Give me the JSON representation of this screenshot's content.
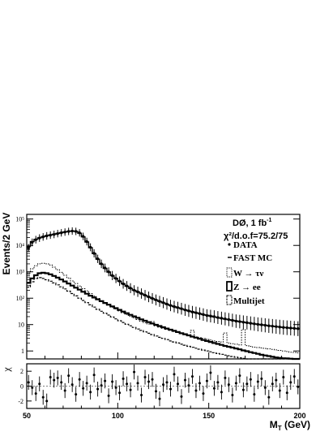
{
  "chart_data": [
    {
      "type": "line",
      "panel": "main",
      "ylabel": "Events/2 GeV",
      "yscale": "log",
      "xlim": [
        50,
        200
      ],
      "ylim": [
        0.5,
        150000
      ],
      "ytick_labels": [
        "1",
        "10",
        "10²",
        "10³",
        "10⁴",
        "10⁵"
      ],
      "ytick_values": [
        1,
        10,
        100,
        1000,
        10000,
        100000
      ],
      "legend_placement": "top-right",
      "annotations": {
        "experiment": "DØ, 1 fb",
        "experiment_sup": "-1",
        "chi2": "χ²/d.o.f=75.2/75"
      },
      "legend": [
        "DATA",
        "FAST MC",
        "W → τν",
        "Z → ee",
        "Multijet"
      ],
      "x": [
        50,
        52,
        54,
        56,
        58,
        60,
        62,
        64,
        66,
        68,
        70,
        72,
        74,
        76,
        78,
        80,
        82,
        84,
        86,
        88,
        90,
        92,
        94,
        96,
        98,
        100,
        102,
        104,
        106,
        108,
        110,
        112,
        114,
        116,
        118,
        120,
        122,
        124,
        126,
        128,
        130,
        132,
        134,
        136,
        138,
        140,
        142,
        144,
        146,
        148,
        150,
        152,
        154,
        156,
        158,
        160,
        162,
        164,
        166,
        168,
        170,
        172,
        174,
        176,
        178,
        180,
        182,
        184,
        186,
        188,
        190,
        192,
        194,
        196,
        198
      ],
      "series": [
        {
          "name": "DATA",
          "style": "points",
          "values": [
            8000,
            13000,
            16500,
            19000,
            21000,
            23000,
            24500,
            26000,
            28000,
            30000,
            32000,
            34000,
            35000,
            34000,
            30000,
            22000,
            14000,
            8500,
            5000,
            3100,
            2000,
            1400,
            1000,
            720,
            560,
            440,
            350,
            290,
            240,
            200,
            175,
            150,
            130,
            112,
            98,
            86,
            76,
            68,
            60,
            53,
            48,
            44,
            40,
            36,
            33,
            30,
            28,
            26,
            24,
            22,
            21,
            20,
            18.5,
            17.5,
            16.5,
            15.5,
            14.5,
            13.5,
            13,
            12.3,
            11.8,
            11.2,
            10.7,
            10.2,
            9.8,
            9.4,
            9,
            8.7,
            8.4,
            8.1,
            7.8,
            7.6,
            7.4,
            7.2,
            7
          ]
        },
        {
          "name": "FAST MC",
          "style": "step",
          "values": [
            9000,
            14000,
            17000,
            19500,
            21500,
            23500,
            25000,
            26500,
            28500,
            30500,
            32500,
            34000,
            35000,
            34000,
            29000,
            21000,
            13500,
            8200,
            4900,
            3000,
            1950,
            1350,
            980,
            720,
            560,
            440,
            350,
            285,
            235,
            198,
            172,
            148,
            128,
            111,
            97,
            85,
            75,
            67,
            59,
            53,
            48,
            43.5,
            39.5,
            36,
            33,
            30.5,
            28,
            26,
            24,
            22.5,
            21,
            19.5,
            18.3,
            17.2,
            16.2,
            15.3,
            14.5,
            13.7,
            13,
            12.4,
            11.8,
            11.2,
            10.7,
            10.2,
            9.8,
            9.4,
            9,
            8.7,
            8.4,
            8.1,
            7.8,
            7.6,
            7.4,
            7.2,
            7
          ]
        },
        {
          "name": "W → τν",
          "style": "step-dotted",
          "values": [
            900,
            1300,
            1700,
            2000,
            2100,
            2000,
            1800,
            1500,
            1200,
            950,
            740,
            580,
            450,
            360,
            290,
            230,
            190,
            150,
            120,
            98,
            80,
            66,
            55,
            46,
            39,
            33,
            28,
            24,
            20.5,
            18,
            15.5,
            13.5,
            11.8,
            10.5,
            13,
            9,
            8,
            7.3,
            6.6,
            6,
            5.5,
            5,
            4.6,
            4.2,
            3.9,
            6,
            3.4,
            3.2,
            3,
            2.8,
            2.6,
            2.4,
            2.3,
            2.2,
            4.8,
            2,
            1.9,
            1.8,
            1.7,
            6.5,
            1.6,
            1.5,
            1.4,
            1.35,
            1.3,
            1.25,
            1.2,
            1.15,
            1.1,
            1.05,
            1,
            0.95,
            0.9,
            0.88,
            0.85
          ]
        },
        {
          "name": "Z → ee",
          "style": "step-bold",
          "values": [
            380,
            560,
            740,
            880,
            920,
            880,
            800,
            700,
            600,
            510,
            430,
            360,
            300,
            250,
            210,
            175,
            148,
            125,
            106,
            90,
            77,
            66,
            57,
            49,
            42,
            36,
            31,
            27,
            23.5,
            20.5,
            18,
            15.8,
            14,
            12.4,
            11,
            9.8,
            8.8,
            7.9,
            7.1,
            6.4,
            5.8,
            5.2,
            4.7,
            4.3,
            3.9,
            3.5,
            3.2,
            2.9,
            2.6,
            2.4,
            2.2,
            2,
            1.85,
            1.7,
            1.55,
            1.45,
            1.35,
            1.25,
            1.15,
            1.05,
            0.98,
            0.9,
            0.84,
            0.78,
            0.72,
            0.68,
            0.64,
            0.6,
            0.57,
            0.55,
            0.53,
            0.52,
            0.51,
            0.5,
            0.5
          ]
        },
        {
          "name": "Multijet",
          "style": "step-dashed",
          "values": [
            260,
            420,
            560,
            600,
            560,
            500,
            440,
            380,
            320,
            270,
            225,
            185,
            150,
            122,
            100,
            82,
            68,
            56,
            46,
            38,
            32,
            27,
            23,
            19.5,
            16.5,
            14,
            12,
            10.3,
            9,
            7.8,
            6.8,
            6,
            5.3,
            4.7,
            4.2,
            3.7,
            3.3,
            3,
            2.7,
            2.4,
            2.2,
            2,
            1.8,
            1.65,
            1.5,
            1.38,
            1.27,
            1.17,
            1.08,
            1,
            0.93,
            0.86,
            0.8,
            0.75,
            0.7,
            0.66,
            0.62,
            0.58,
            0.55,
            0.52,
            0.5,
            0.5,
            0.5,
            0.5,
            0.5,
            0.5,
            0.5,
            0.5,
            0.5,
            0.5,
            0.5,
            0.5,
            0.5,
            0.5,
            0.5
          ]
        }
      ]
    },
    {
      "type": "scatter",
      "panel": "residual",
      "ylabel": "χ",
      "xlabel": "M",
      "xlabel_sub": "T",
      "xlabel_unit": " (GeV)",
      "xlim": [
        50,
        200
      ],
      "ylim": [
        -3,
        3
      ],
      "xtick_labels": [
        "50",
        "100",
        "150",
        "200"
      ],
      "xtick_values": [
        50,
        100,
        150,
        200
      ],
      "ytick_labels": [
        "2",
        "0",
        "-2"
      ],
      "ytick_values": [
        2,
        0,
        -2
      ],
      "x": [
        51,
        53,
        55,
        57,
        59,
        61,
        63,
        65,
        67,
        69,
        71,
        73,
        75,
        77,
        79,
        81,
        83,
        85,
        87,
        89,
        91,
        93,
        95,
        97,
        99,
        101,
        103,
        105,
        107,
        109,
        111,
        113,
        115,
        117,
        119,
        121,
        123,
        125,
        127,
        129,
        131,
        133,
        135,
        137,
        139,
        141,
        143,
        145,
        147,
        149,
        151,
        153,
        155,
        157,
        159,
        161,
        163,
        165,
        167,
        169,
        171,
        173,
        175,
        177,
        179,
        181,
        183,
        185,
        187,
        189,
        191,
        193,
        195,
        197,
        199
      ],
      "values": [
        0.5,
        -0.2,
        -1,
        0.3,
        -1.5,
        -2,
        1.2,
        0.8,
        1.1,
        0.5,
        -0.6,
        1.4,
        0.2,
        -1.1,
        0.9,
        -0.3,
        0.4,
        -0.8,
        1.5,
        -0.4,
        0.1,
        0.7,
        -1.3,
        0.6,
        -0.2,
        -0.9,
        1.0,
        0.3,
        -0.5,
        1.9,
        0.4,
        -1.2,
        1.2,
        0.6,
        0.9,
        -0.7,
        -1.7,
        0.2,
        0.5,
        -0.4,
        1.6,
        0.3,
        -1.4,
        0.8,
        0.1,
        1.3,
        -0.6,
        0.4,
        -1.0,
        0.7,
        1.8,
        -0.3,
        0.5,
        -0.8,
        1.1,
        0.2,
        -1.2,
        0.4,
        1.4,
        -0.5,
        0.3,
        0.9,
        -1.1,
        0.6,
        1.0,
        -0.2,
        -1.5,
        0.3,
        0.8,
        -0.6,
        1.2,
        -0.9,
        0.5,
        1.3,
        -0.1
      ],
      "errors": 1
    }
  ]
}
